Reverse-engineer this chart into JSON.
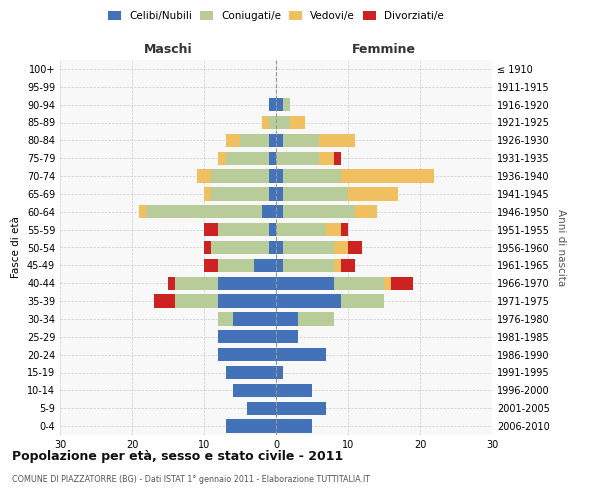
{
  "age_groups": [
    "0-4",
    "5-9",
    "10-14",
    "15-19",
    "20-24",
    "25-29",
    "30-34",
    "35-39",
    "40-44",
    "45-49",
    "50-54",
    "55-59",
    "60-64",
    "65-69",
    "70-74",
    "75-79",
    "80-84",
    "85-89",
    "90-94",
    "95-99",
    "100+"
  ],
  "birth_years": [
    "2006-2010",
    "2001-2005",
    "1996-2000",
    "1991-1995",
    "1986-1990",
    "1981-1985",
    "1976-1980",
    "1971-1975",
    "1966-1970",
    "1961-1965",
    "1956-1960",
    "1951-1955",
    "1946-1950",
    "1941-1945",
    "1936-1940",
    "1931-1935",
    "1926-1930",
    "1921-1925",
    "1916-1920",
    "1911-1915",
    "≤ 1910"
  ],
  "males": {
    "celibi": [
      7,
      4,
      6,
      7,
      8,
      8,
      6,
      8,
      8,
      3,
      1,
      1,
      2,
      1,
      1,
      1,
      1,
      0,
      1,
      0,
      0
    ],
    "coniugati": [
      0,
      0,
      0,
      0,
      0,
      0,
      2,
      6,
      6,
      5,
      8,
      7,
      16,
      8,
      8,
      6,
      4,
      1,
      0,
      0,
      0
    ],
    "vedovi": [
      0,
      0,
      0,
      0,
      0,
      0,
      0,
      0,
      0,
      0,
      0,
      0,
      1,
      1,
      2,
      1,
      2,
      1,
      0,
      0,
      0
    ],
    "divorziati": [
      0,
      0,
      0,
      0,
      0,
      0,
      0,
      3,
      1,
      2,
      1,
      2,
      0,
      0,
      0,
      0,
      0,
      0,
      0,
      0,
      0
    ]
  },
  "females": {
    "nubili": [
      5,
      7,
      5,
      1,
      7,
      3,
      3,
      9,
      8,
      1,
      1,
      0,
      1,
      1,
      1,
      0,
      1,
      0,
      1,
      0,
      0
    ],
    "coniugate": [
      0,
      0,
      0,
      0,
      0,
      0,
      5,
      6,
      7,
      7,
      7,
      7,
      10,
      9,
      8,
      6,
      5,
      2,
      1,
      0,
      0
    ],
    "vedove": [
      0,
      0,
      0,
      0,
      0,
      0,
      0,
      0,
      1,
      1,
      2,
      2,
      3,
      7,
      13,
      2,
      5,
      2,
      0,
      0,
      0
    ],
    "divorziate": [
      0,
      0,
      0,
      0,
      0,
      0,
      0,
      0,
      3,
      2,
      2,
      1,
      0,
      0,
      0,
      1,
      0,
      0,
      0,
      0,
      0
    ]
  },
  "colors": {
    "celibi": "#4472b8",
    "coniugati": "#b8cc99",
    "vedovi": "#f0c060",
    "divorziati": "#cc2222"
  },
  "xlim": 30,
  "title": "Popolazione per età, sesso e stato civile - 2011",
  "subtitle": "COMUNE DI PIAZZATORRE (BG) - Dati ISTAT 1° gennaio 2011 - Elaborazione TUTTITALIA.IT",
  "ylabel_left": "Fasce di età",
  "ylabel_right": "Anni di nascita",
  "xlabel_left": "Maschi",
  "xlabel_right": "Femmine"
}
